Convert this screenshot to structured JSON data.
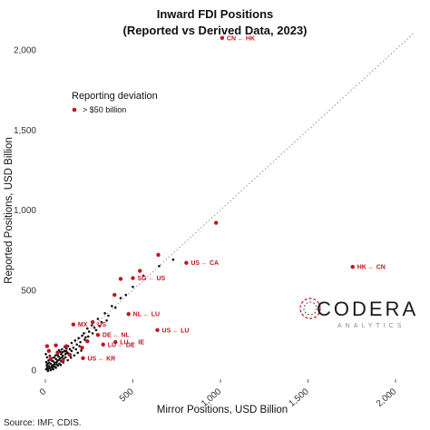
{
  "chart_data": {
    "type": "scatter",
    "title": "Inward FDI Positions",
    "subtitle": "(Reported vs Derived Data, 2023)",
    "xlabel": "Mirror Positions, USD Billion",
    "ylabel": "Reported Positions, USD Billion",
    "xlim": [
      0,
      2100
    ],
    "ylim": [
      -30,
      2100
    ],
    "x_ticks": [
      0,
      500,
      1000,
      1500,
      2000
    ],
    "x_tick_labels": [
      "0",
      "500",
      "1,000",
      "1,500",
      "2,000"
    ],
    "y_ticks": [
      0,
      500,
      1000,
      1500,
      2000
    ],
    "y_tick_labels": [
      "0",
      "500",
      "1,000",
      "1,500",
      "2,000"
    ],
    "reference_line": "y = x (dotted)",
    "grid": false,
    "legend": {
      "title": "Reporting deviation",
      "placement": "top-left",
      "items": [
        {
          "label": "> $50 billion",
          "color": "#c0151f"
        }
      ]
    },
    "highlight_color": "#c0151f",
    "base_color": "#111111",
    "highlighted_points": [
      {
        "x": 1010,
        "y": 2075,
        "label": "CN ← HK"
      },
      {
        "x": 1755,
        "y": 645,
        "label": "HK ← CN"
      },
      {
        "x": 975,
        "y": 920,
        "label": ""
      },
      {
        "x": 645,
        "y": 720,
        "label": ""
      },
      {
        "x": 805,
        "y": 670,
        "label": "US ← CA"
      },
      {
        "x": 540,
        "y": 620,
        "label": ""
      },
      {
        "x": 430,
        "y": 570,
        "label": ""
      },
      {
        "x": 500,
        "y": 575,
        "label": "SG ← US"
      },
      {
        "x": 395,
        "y": 470,
        "label": ""
      },
      {
        "x": 475,
        "y": 350,
        "label": "NL ← LU"
      },
      {
        "x": 160,
        "y": 285,
        "label": "MX ← US"
      },
      {
        "x": 270,
        "y": 300,
        "label": ""
      },
      {
        "x": 640,
        "y": 250,
        "label": "US ← LU"
      },
      {
        "x": 300,
        "y": 220,
        "label": "DE ← NL"
      },
      {
        "x": 240,
        "y": 180,
        "label": ""
      },
      {
        "x": 400,
        "y": 175,
        "label": "LU ← IE"
      },
      {
        "x": 330,
        "y": 160,
        "label": "LU ← DE"
      },
      {
        "x": 210,
        "y": 140,
        "label": ""
      },
      {
        "x": 215,
        "y": 75,
        "label": "US ← KR"
      },
      {
        "x": 10,
        "y": 150,
        "label": ""
      },
      {
        "x": 60,
        "y": 155,
        "label": ""
      },
      {
        "x": 120,
        "y": 150,
        "label": ""
      },
      {
        "x": 20,
        "y": 120,
        "label": ""
      },
      {
        "x": 70,
        "y": 110,
        "label": ""
      },
      {
        "x": 140,
        "y": 95,
        "label": ""
      },
      {
        "x": 30,
        "y": 70,
        "label": ""
      },
      {
        "x": 100,
        "y": 60,
        "label": ""
      }
    ],
    "other_points": [
      [
        5,
        5
      ],
      [
        10,
        15
      ],
      [
        15,
        8
      ],
      [
        20,
        25
      ],
      [
        25,
        12
      ],
      [
        30,
        40
      ],
      [
        35,
        20
      ],
      [
        40,
        30
      ],
      [
        45,
        55
      ],
      [
        50,
        35
      ],
      [
        55,
        45
      ],
      [
        60,
        70
      ],
      [
        65,
        50
      ],
      [
        70,
        60
      ],
      [
        75,
        85
      ],
      [
        80,
        65
      ],
      [
        85,
        75
      ],
      [
        90,
        100
      ],
      [
        95,
        80
      ],
      [
        100,
        90
      ],
      [
        110,
        120
      ],
      [
        115,
        100
      ],
      [
        120,
        135
      ],
      [
        125,
        110
      ],
      [
        130,
        150
      ],
      [
        140,
        130
      ],
      [
        150,
        170
      ],
      [
        160,
        140
      ],
      [
        170,
        185
      ],
      [
        180,
        160
      ],
      [
        190,
        200
      ],
      [
        200,
        175
      ],
      [
        210,
        215
      ],
      [
        220,
        230
      ],
      [
        230,
        205
      ],
      [
        240,
        260
      ],
      [
        250,
        240
      ],
      [
        265,
        280
      ],
      [
        280,
        265
      ],
      [
        300,
        320
      ],
      [
        320,
        300
      ],
      [
        340,
        355
      ],
      [
        360,
        340
      ],
      [
        380,
        400
      ],
      [
        400,
        390
      ],
      [
        430,
        450
      ],
      [
        460,
        470
      ],
      [
        500,
        520
      ],
      [
        560,
        590
      ],
      [
        650,
        650
      ],
      [
        730,
        690
      ],
      [
        12,
        40
      ],
      [
        18,
        60
      ],
      [
        25,
        90
      ],
      [
        8,
        30
      ],
      [
        40,
        10
      ],
      [
        55,
        20
      ],
      [
        65,
        35
      ],
      [
        80,
        40
      ],
      [
        90,
        55
      ],
      [
        105,
        70
      ],
      [
        115,
        80
      ],
      [
        30,
        0
      ],
      [
        45,
        5
      ],
      [
        60,
        15
      ],
      [
        15,
        -5
      ],
      [
        35,
        60
      ],
      [
        50,
        80
      ],
      [
        70,
        95
      ],
      [
        85,
        115
      ],
      [
        95,
        130
      ],
      [
        110,
        145
      ],
      [
        130,
        105
      ],
      [
        150,
        120
      ],
      [
        175,
        130
      ],
      [
        195,
        150
      ],
      [
        225,
        190
      ],
      [
        245,
        210
      ],
      [
        270,
        230
      ],
      [
        290,
        250
      ],
      [
        310,
        275
      ],
      [
        350,
        310
      ],
      [
        5,
        50
      ],
      [
        10,
        80
      ],
      [
        3,
        100
      ],
      [
        22,
        45
      ],
      [
        48,
        22
      ],
      [
        72,
        28
      ],
      [
        88,
        32
      ],
      [
        102,
        48
      ],
      [
        128,
        62
      ],
      [
        146,
        78
      ],
      [
        165,
        92
      ],
      [
        185,
        108
      ],
      [
        205,
        122
      ],
      [
        38,
        75
      ],
      [
        58,
        92
      ],
      [
        78,
        125
      ],
      [
        98,
        112
      ],
      [
        118,
        118
      ]
    ]
  },
  "source_text": "Source: IMF, CDIS.",
  "logo": {
    "name": "CODERA",
    "sub": "ANALYTICS"
  }
}
